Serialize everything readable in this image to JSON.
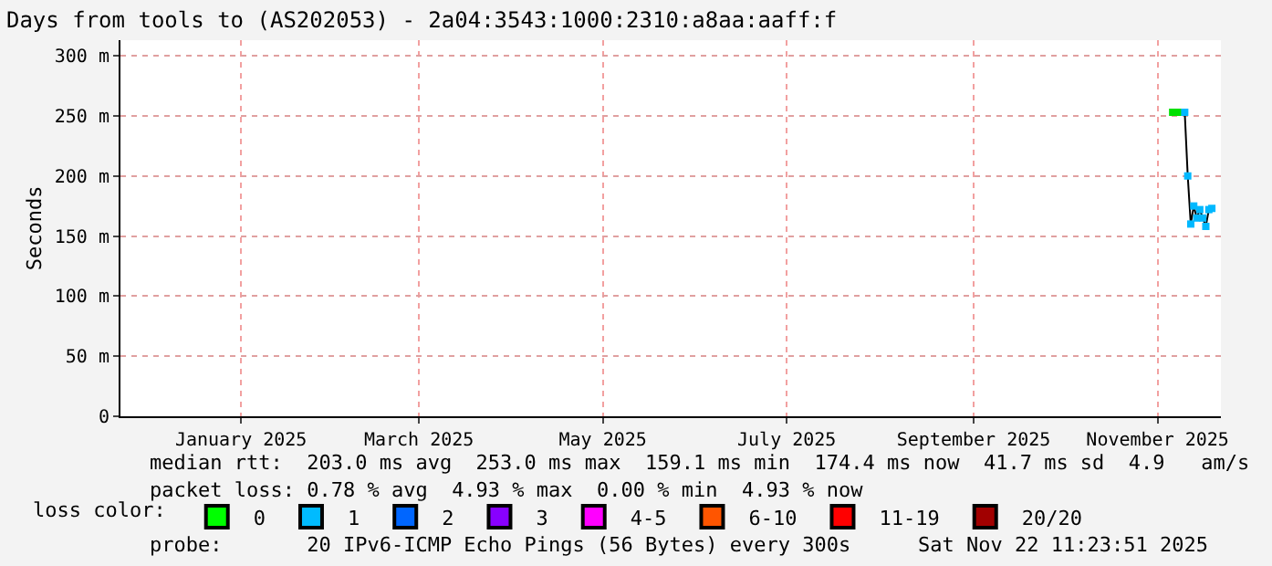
{
  "chart_data": {
    "type": "line",
    "title": "Days from tools to (AS202053) - 2a04:3543:1000:2310:a8aa:aaff:f",
    "ylabel": "Seconds",
    "x": [
      "2025-11-06",
      "2025-11-08",
      "2025-11-10",
      "2025-11-11",
      "2025-11-12",
      "2025-11-13",
      "2025-11-14",
      "2025-11-15",
      "2025-11-16",
      "2025-11-17",
      "2025-11-18",
      "2025-11-19"
    ],
    "series": [
      {
        "color": "#000000",
        "values": [
          253,
          253,
          253,
          200,
          160,
          175,
          165,
          172,
          165,
          158,
          172,
          173
        ],
        "colors": [
          "#00e000",
          "#00e000",
          "#00b8ff",
          "#00b8ff",
          "#00b8ff",
          "#00b8ff",
          "#00b8ff",
          "#00b8ff",
          "#00b8ff",
          "#00b8ff",
          "#00b8ff",
          "#00b8ff"
        ]
      },
      {
        "name": "0",
        "color": "#00ff00",
        "values": [
          null,
          null,
          null,
          null,
          null,
          null,
          null,
          null,
          null,
          null,
          null,
          null
        ]
      },
      {
        "name": "1",
        "color": "#00bbff",
        "values": [
          null,
          null,
          null,
          null,
          null,
          null,
          null,
          null,
          null,
          null,
          null,
          null
        ]
      },
      {
        "name": "2",
        "color": "#0066ff",
        "values": [
          null,
          null,
          null,
          null,
          null,
          null,
          null,
          null,
          null,
          null,
          null,
          null
        ]
      },
      {
        "name": "3",
        "color": "#8800ff",
        "values": [
          null,
          null,
          null,
          null,
          null,
          null,
          null,
          null,
          null,
          null,
          null,
          null
        ]
      },
      {
        "name": "4-5",
        "color": "#ff00ff",
        "values": [
          null,
          null,
          null,
          null,
          null,
          null,
          null,
          null,
          null,
          null,
          null,
          null
        ]
      },
      {
        "name": "6-10",
        "color": "#ff5500",
        "values": [
          null,
          null,
          null,
          null,
          null,
          null,
          null,
          null,
          null,
          null,
          null,
          null
        ]
      },
      {
        "name": "11-19",
        "color": "#ff0000",
        "values": [
          null,
          null,
          null,
          null,
          null,
          null,
          null,
          null,
          null,
          null,
          null,
          null
        ]
      },
      {
        "name": "20/20",
        "color": "#a10000",
        "values": [
          null,
          null,
          null,
          null,
          null,
          null,
          null,
          null,
          null,
          null,
          null,
          null
        ]
      }
    ],
    "legend_title": "loss color:",
    "legend": "bottom",
    "xlim": [
      "2024-11-22",
      "2025-11-22"
    ],
    "xticks": [
      {
        "value": "2025-01-01",
        "label": "January 2025"
      },
      {
        "value": "2025-03-01",
        "label": "March 2025"
      },
      {
        "value": "2025-05-01",
        "label": "May 2025"
      },
      {
        "value": "2025-07-01",
        "label": "July 2025"
      },
      {
        "value": "2025-09-01",
        "label": "September 2025"
      },
      {
        "value": "2025-11-01",
        "label": "November 2025"
      }
    ],
    "ylim": [
      0,
      313
    ],
    "yticks": [
      0,
      {
        "value": 50,
        "label": "50 m"
      },
      {
        "value": 100,
        "label": "100 m"
      },
      {
        "value": 150,
        "label": "150 m"
      },
      {
        "value": 200,
        "label": "200 m"
      },
      {
        "value": 250,
        "label": "250 m"
      },
      {
        "value": 300,
        "label": "300 m"
      }
    ],
    "grid": true,
    "marker": "square",
    "line_style": "solid",
    "annotations": [
      "median rtt:  203.0 ms avg  253.0 ms max  159.1 ms min  174.4 ms now  41.7 ms sd  4.9   am/s",
      "packet loss: 0.78 % avg  4.93 % max  0.00 % min  4.93 % now",
      "probe:       20 IPv6-ICMP Echo Pings (56 Bytes) every 300s",
      "Sat Nov 22 11:23:51 2025"
    ]
  }
}
